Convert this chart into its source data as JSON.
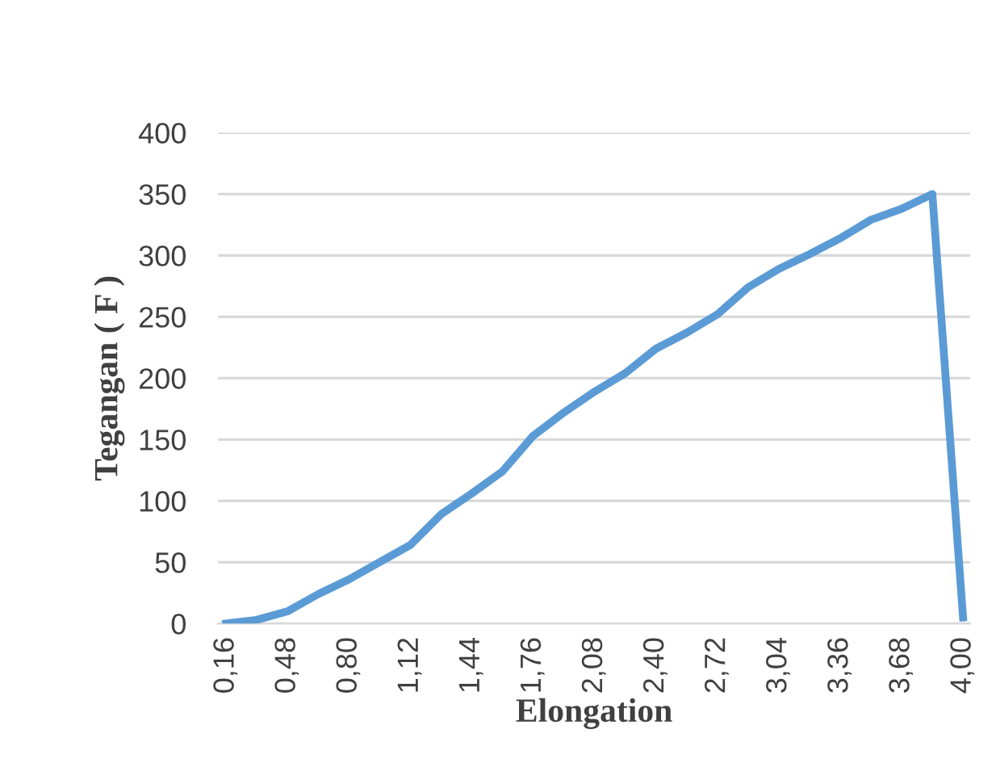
{
  "chart_data": {
    "type": "line",
    "xlabel": "Elongation",
    "ylabel": "Tegangan ( F )",
    "categories": [
      "0,16",
      null,
      "0,48",
      null,
      "0,80",
      null,
      "1,12",
      null,
      "1,44",
      null,
      "1,76",
      null,
      "2,08",
      null,
      "2,40",
      null,
      "2,72",
      null,
      "3,04",
      null,
      "3,36",
      null,
      "3,68",
      null,
      "4,00"
    ],
    "series": [
      {
        "color": "#5b9bd5",
        "values": [
          0,
          3,
          10,
          24,
          36,
          50,
          64,
          89,
          106,
          124,
          153,
          172,
          189,
          204,
          224,
          237,
          252,
          274,
          289,
          301,
          314,
          329,
          338,
          350,
          5
        ]
      }
    ],
    "ylim": [
      0,
      400
    ],
    "yticks": [
      0,
      50,
      100,
      150,
      200,
      250,
      300,
      350,
      400
    ],
    "grid": "y",
    "marker": "none",
    "line_style": "solid"
  }
}
